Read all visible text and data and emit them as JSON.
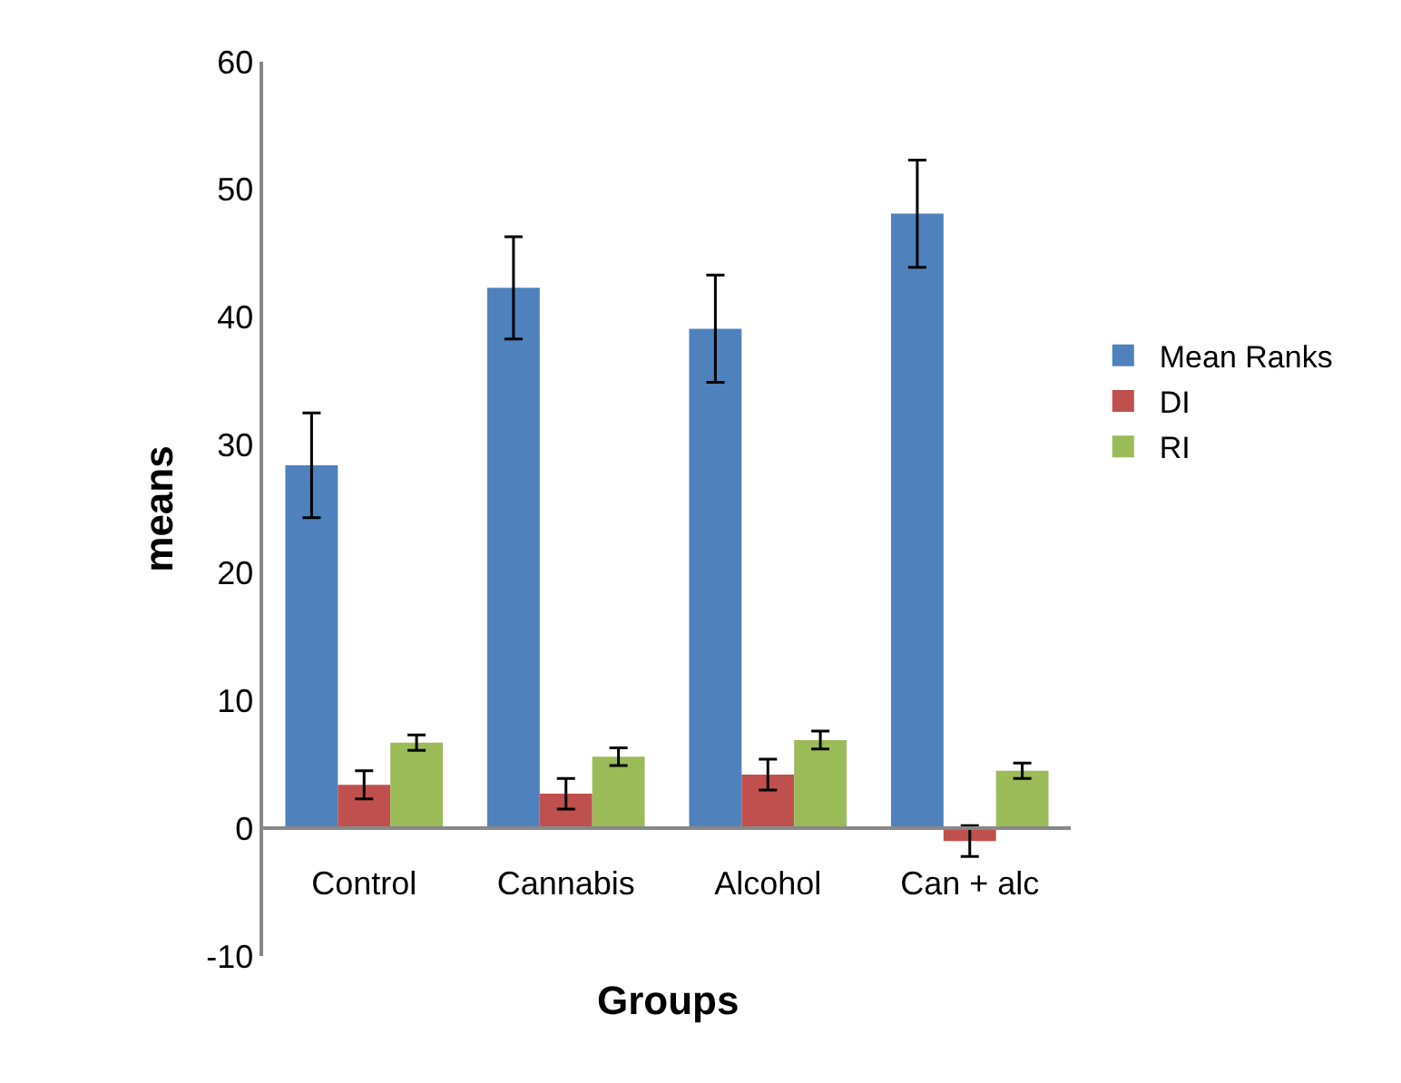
{
  "chart_data": {
    "type": "bar",
    "xlabel": "Groups",
    "ylabel": "means",
    "categories": [
      "Control",
      "Cannabis",
      "Alcohol",
      "Can + alc"
    ],
    "series": [
      {
        "name": "Mean Ranks",
        "color": "#4f81bd",
        "values": [
          28.4,
          42.3,
          39.1,
          48.1
        ],
        "errors": [
          4.1,
          4.0,
          4.2,
          4.2
        ]
      },
      {
        "name": "DI",
        "color": "#c0504d",
        "values": [
          3.4,
          2.7,
          4.2,
          -1.0
        ],
        "errors": [
          1.1,
          1.2,
          1.2,
          1.2
        ]
      },
      {
        "name": "RI",
        "color": "#9bbb59",
        "values": [
          6.7,
          5.6,
          6.9,
          4.5
        ],
        "errors": [
          0.6,
          0.7,
          0.7,
          0.6
        ]
      }
    ],
    "ylim": [
      -10,
      60
    ],
    "yticks": [
      -10,
      0,
      10,
      20,
      30,
      40,
      50,
      60
    ],
    "legend": "right"
  }
}
